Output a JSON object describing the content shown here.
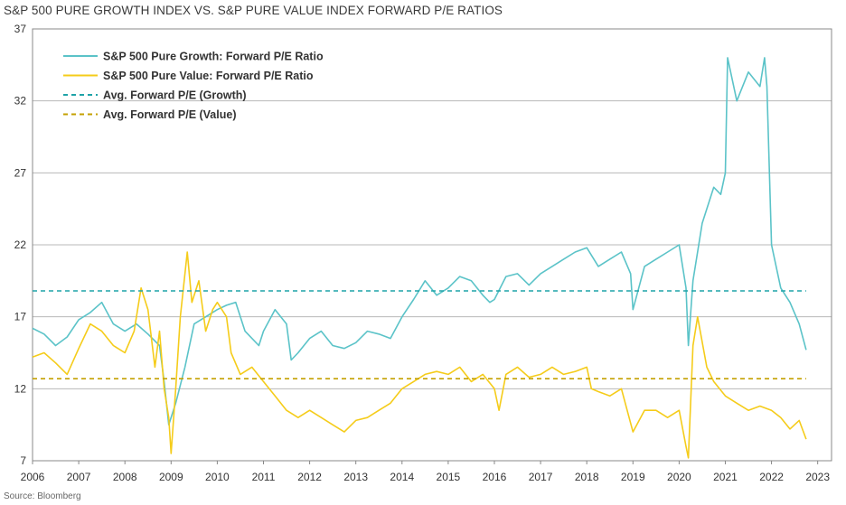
{
  "title": "S&P 500 PURE GROWTH INDEX VS. S&P PURE VALUE INDEX FORWARD P/E RATIOS",
  "source": "Source: Bloomberg",
  "colors": {
    "growth": "#5bc3c8",
    "value": "#f5cc1a",
    "avg_growth": "#1fa3a8",
    "avg_value": "#c4a000",
    "grid": "#b8b8b8",
    "axis": "#888888"
  },
  "chart_data": {
    "type": "line",
    "title": "S&P 500 PURE GROWTH INDEX VS. S&P PURE VALUE INDEX FORWARD P/E RATIOS",
    "xlabel": "",
    "ylabel": "",
    "xlim": [
      2006,
      2023.3
    ],
    "ylim": [
      7,
      37
    ],
    "x_ticks": [
      "2006",
      "2007",
      "2008",
      "2009",
      "2010",
      "2011",
      "2012",
      "2013",
      "2014",
      "2015",
      "2016",
      "2017",
      "2018",
      "2019",
      "2020",
      "2021",
      "2022",
      "2023"
    ],
    "y_ticks": [
      "7",
      "12",
      "17",
      "22",
      "27",
      "32",
      "37"
    ],
    "grid": "horizontal",
    "legend_position": "top-left",
    "series": [
      {
        "name": "S&P 500 Pure Growth: Forward P/E Ratio",
        "style": "solid",
        "x": [
          2006.0,
          2006.25,
          2006.5,
          2006.75,
          2007.0,
          2007.25,
          2007.5,
          2007.75,
          2008.0,
          2008.25,
          2008.5,
          2008.75,
          2008.85,
          2008.95,
          2009.1,
          2009.3,
          2009.5,
          2009.75,
          2010.0,
          2010.2,
          2010.4,
          2010.6,
          2010.9,
          2011.0,
          2011.25,
          2011.5,
          2011.6,
          2011.75,
          2012.0,
          2012.25,
          2012.5,
          2012.75,
          2013.0,
          2013.25,
          2013.5,
          2013.75,
          2014.0,
          2014.25,
          2014.5,
          2014.75,
          2015.0,
          2015.25,
          2015.5,
          2015.75,
          2015.9,
          2016.0,
          2016.25,
          2016.5,
          2016.75,
          2017.0,
          2017.25,
          2017.5,
          2017.75,
          2018.0,
          2018.25,
          2018.5,
          2018.75,
          2018.95,
          2019.0,
          2019.25,
          2019.5,
          2019.75,
          2020.0,
          2020.15,
          2020.2,
          2020.3,
          2020.5,
          2020.75,
          2020.9,
          2021.0,
          2021.05,
          2021.25,
          2021.5,
          2021.75,
          2021.85,
          2021.9,
          2022.0,
          2022.2,
          2022.4,
          2022.6,
          2022.75
        ],
        "y": [
          16.2,
          15.8,
          15.0,
          15.6,
          16.8,
          17.3,
          18.0,
          16.5,
          16.0,
          16.5,
          15.8,
          15.0,
          12.5,
          9.5,
          11.0,
          13.5,
          16.5,
          17.0,
          17.5,
          17.8,
          18.0,
          16.0,
          15.0,
          16.0,
          17.5,
          16.5,
          14.0,
          14.5,
          15.5,
          16.0,
          15.0,
          14.8,
          15.2,
          16.0,
          15.8,
          15.5,
          17.0,
          18.2,
          19.5,
          18.5,
          19.0,
          19.8,
          19.5,
          18.5,
          18.0,
          18.2,
          19.8,
          20.0,
          19.2,
          20.0,
          20.5,
          21.0,
          21.5,
          21.8,
          20.5,
          21.0,
          21.5,
          20.0,
          17.5,
          20.5,
          21.0,
          21.5,
          22.0,
          19.0,
          15.0,
          19.5,
          23.5,
          26.0,
          25.5,
          27.0,
          35.0,
          32.0,
          34.0,
          33.0,
          35.0,
          33.0,
          22.0,
          19.0,
          18.0,
          16.5,
          14.7
        ]
      },
      {
        "name": "S&P 500 Pure Value: Forward P/E Ratio",
        "style": "solid",
        "x": [
          2006.0,
          2006.25,
          2006.5,
          2006.75,
          2007.0,
          2007.25,
          2007.5,
          2007.75,
          2008.0,
          2008.2,
          2008.35,
          2008.5,
          2008.65,
          2008.75,
          2008.85,
          2008.95,
          2009.0,
          2009.1,
          2009.2,
          2009.35,
          2009.45,
          2009.6,
          2009.75,
          2009.9,
          2010.0,
          2010.2,
          2010.3,
          2010.5,
          2010.75,
          2011.0,
          2011.25,
          2011.5,
          2011.75,
          2012.0,
          2012.25,
          2012.5,
          2012.75,
          2013.0,
          2013.25,
          2013.5,
          2013.75,
          2014.0,
          2014.25,
          2014.5,
          2014.75,
          2015.0,
          2015.25,
          2015.5,
          2015.75,
          2016.0,
          2016.1,
          2016.25,
          2016.5,
          2016.75,
          2017.0,
          2017.25,
          2017.5,
          2017.75,
          2018.0,
          2018.1,
          2018.25,
          2018.5,
          2018.75,
          2019.0,
          2019.25,
          2019.5,
          2019.75,
          2020.0,
          2020.15,
          2020.2,
          2020.3,
          2020.4,
          2020.6,
          2020.75,
          2021.0,
          2021.25,
          2021.5,
          2021.75,
          2022.0,
          2022.2,
          2022.4,
          2022.6,
          2022.75
        ],
        "y": [
          14.2,
          14.5,
          13.8,
          13.0,
          14.8,
          16.5,
          16.0,
          15.0,
          14.5,
          16.0,
          19.0,
          17.5,
          13.5,
          16.0,
          12.0,
          10.0,
          7.5,
          12.0,
          17.0,
          21.5,
          18.0,
          19.5,
          16.0,
          17.5,
          18.0,
          17.0,
          14.5,
          13.0,
          13.5,
          12.5,
          11.5,
          10.5,
          10.0,
          10.5,
          10.0,
          9.5,
          9.0,
          9.8,
          10.0,
          10.5,
          11.0,
          12.0,
          12.5,
          13.0,
          13.2,
          13.0,
          13.5,
          12.5,
          13.0,
          12.0,
          10.5,
          13.0,
          13.5,
          12.8,
          13.0,
          13.5,
          13.0,
          13.2,
          13.5,
          12.0,
          11.8,
          11.5,
          12.0,
          9.0,
          10.5,
          10.5,
          10.0,
          10.5,
          8.0,
          7.2,
          15.0,
          17.0,
          13.5,
          12.5,
          11.5,
          11.0,
          10.5,
          10.8,
          10.5,
          10.0,
          9.2,
          9.8,
          8.5
        ]
      },
      {
        "name": "Avg. Forward P/E (Growth)",
        "style": "dashed",
        "x": [
          2006.0,
          2022.75
        ],
        "y": [
          18.8,
          18.8
        ]
      },
      {
        "name": "Avg. Forward P/E (Value)",
        "style": "dashed",
        "x": [
          2006.0,
          2022.75
        ],
        "y": [
          12.7,
          12.7
        ]
      }
    ]
  }
}
